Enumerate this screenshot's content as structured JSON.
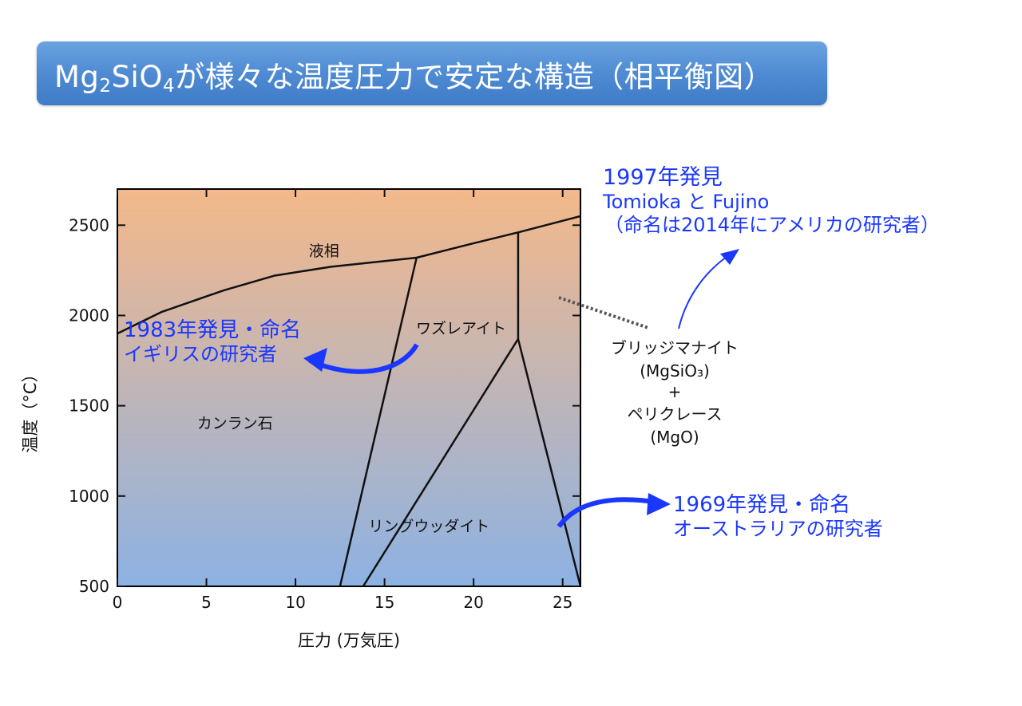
{
  "header": {
    "title_parts": [
      "Mg",
      "2",
      "SiO",
      "4",
      "が様々な温度圧力で安定な構造（相平衡図）"
    ]
  },
  "chart_data": {
    "type": "line",
    "title": "",
    "xlabel": "圧力 (万気圧)",
    "ylabel": "温度（°C）",
    "xlim": [
      0,
      26
    ],
    "ylim": [
      500,
      2700
    ],
    "xticks": [
      0,
      5,
      10,
      15,
      20,
      25
    ],
    "yticks": [
      500,
      1000,
      1500,
      2000,
      2500
    ],
    "grid": false,
    "background_gradient": [
      "#f4b88a",
      "#8db2e3"
    ],
    "series": [
      {
        "values": [
          [
            0,
            1900
          ],
          [
            2.5,
            2020
          ],
          [
            6,
            2140
          ],
          [
            8.8,
            2220
          ],
          [
            12,
            2270
          ],
          [
            16.8,
            2320
          ]
        ]
      },
      {
        "values": [
          [
            16.8,
            2320
          ],
          [
            20,
            2400
          ],
          [
            22.5,
            2460
          ]
        ]
      },
      {
        "values": [
          [
            22.5,
            2460
          ],
          [
            26,
            2550
          ]
        ]
      },
      {
        "values": [
          [
            16.8,
            2320
          ],
          [
            12.5,
            500
          ]
        ]
      },
      {
        "values": [
          [
            22.5,
            2460
          ],
          [
            22.5,
            1870
          ]
        ]
      },
      {
        "values": [
          [
            22.5,
            1870
          ],
          [
            13.8,
            500
          ]
        ]
      },
      {
        "values": [
          [
            22.5,
            1870
          ],
          [
            26,
            500
          ]
        ]
      }
    ],
    "region_labels": [
      {
        "text": "液相",
        "x": 11.6,
        "y": 2330
      },
      {
        "text": "ワズレアイト",
        "x": 19.3,
        "y": 1900
      },
      {
        "text": "カンラン石",
        "x": 6.6,
        "y": 1375
      },
      {
        "text": "リングウッダイト",
        "x": 17.5,
        "y": 805
      }
    ],
    "outside_label_lines": [
      "ブリッジマナイト",
      "(MgSiO₃)",
      "+",
      "ペリクレース",
      "(MgO)"
    ]
  },
  "annotations": {
    "discovery_1983": {
      "lines": [
        "1983年発見・命名",
        "イギリスの研究者"
      ],
      "color": "#1a37ff"
    },
    "discovery_1997": {
      "lines": [
        "1997年発見",
        "Tomioka と Fujino",
        "（命名は2014年にアメリカの研究者）"
      ],
      "color": "#1a37ff"
    },
    "discovery_1969": {
      "lines": [
        "1969年発見・命名",
        "オーストラリアの研究者"
      ],
      "color": "#1a37ff"
    }
  }
}
